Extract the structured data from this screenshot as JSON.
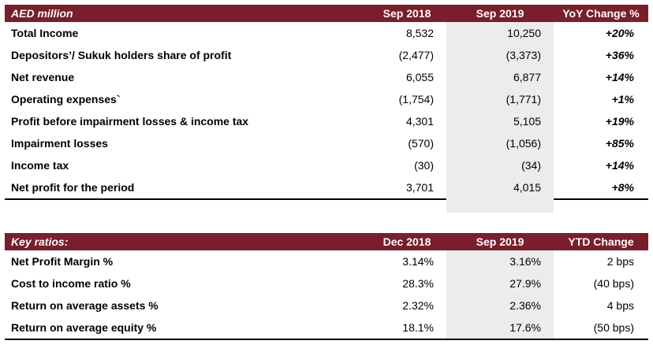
{
  "income_table": {
    "headers": [
      "AED million",
      "Sep 2018",
      "Sep 2019",
      "YoY Change %"
    ],
    "rows": [
      {
        "label": "Total Income",
        "sep2018": "8,532",
        "sep2019": "10,250",
        "change": "+20%"
      },
      {
        "label": "Depositors’/ Sukuk holders share of profit",
        "sep2018": "(2,477)",
        "sep2019": "(3,373)",
        "change": "+36%"
      },
      {
        "label": "Net revenue",
        "sep2018": "6,055",
        "sep2019": "6,877",
        "change": "+14%"
      },
      {
        "label": "Operating expenses`",
        "sep2018": "(1,754)",
        "sep2019": "(1,771)",
        "change": "+1%"
      },
      {
        "label": "Profit before impairment losses & income tax",
        "sep2018": "4,301",
        "sep2019": "5,105",
        "change": "+19%"
      },
      {
        "label": "Impairment losses",
        "sep2018": "(570)",
        "sep2019": "(1,056)",
        "change": "+85%"
      },
      {
        "label": "Income tax",
        "sep2018": "(30)",
        "sep2019": "(34)",
        "change": "+14%"
      },
      {
        "label": "Net profit for the period",
        "sep2018": "3,701",
        "sep2019": "4,015",
        "change": "+8%"
      }
    ]
  },
  "ratios_table": {
    "headers": [
      "Key ratios:",
      "Dec 2018",
      "Sep 2019",
      "YTD Change"
    ],
    "rows": [
      {
        "label": "Net Profit Margin %",
        "dec2018": "3.14%",
        "sep2019": "3.16%",
        "change": "2 bps"
      },
      {
        "label": "Cost to income ratio %",
        "dec2018": "28.3%",
        "sep2019": "27.9%",
        "change": "(40 bps)"
      },
      {
        "label": "Return on average assets %",
        "dec2018": "2.32%",
        "sep2019": "2.36%",
        "change": "4 bps"
      },
      {
        "label": "Return on average equity %",
        "dec2018": "18.1%",
        "sep2019": "17.6%",
        "change": "(50 bps)"
      }
    ]
  },
  "colors": {
    "header_bg": "#7a1e2b",
    "shade": "#ececec"
  }
}
